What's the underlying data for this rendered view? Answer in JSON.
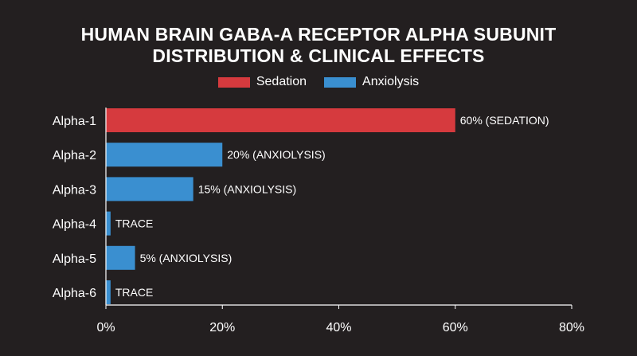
{
  "chart_data": {
    "type": "bar",
    "orientation": "horizontal",
    "title_lines": [
      "HUMAN BRAIN GABA-A RECEPTOR ALPHA SUBUNIT",
      "DISTRIBUTION & CLINICAL EFFECTS"
    ],
    "categories": [
      "Alpha-1",
      "Alpha-2",
      "Alpha-3",
      "Alpha-4",
      "Alpha-5",
      "Alpha-6"
    ],
    "values": [
      60,
      20,
      15,
      0.8,
      5,
      0.8
    ],
    "value_labels": [
      "60% (SEDATION)",
      "20% (ANXIOLYSIS)",
      "15% (ANXIOLYSIS)",
      "TRACE",
      "5% (ANXIOLYSIS)",
      "TRACE"
    ],
    "effect": [
      "Sedation",
      "Anxiolysis",
      "Anxiolysis",
      "Anxiolysis",
      "Anxiolysis",
      "Anxiolysis"
    ],
    "legend": [
      {
        "name": "Sedation",
        "color": "#d63a3e"
      },
      {
        "name": "Anxiolysis",
        "color": "#3a8fd0"
      }
    ],
    "xlim": [
      0,
      80
    ],
    "xticks": [
      0,
      20,
      40,
      60,
      80
    ],
    "xtick_labels": [
      "0%",
      "20%",
      "40%",
      "60%",
      "80%"
    ],
    "legend_position": "top-center",
    "grid": false
  }
}
